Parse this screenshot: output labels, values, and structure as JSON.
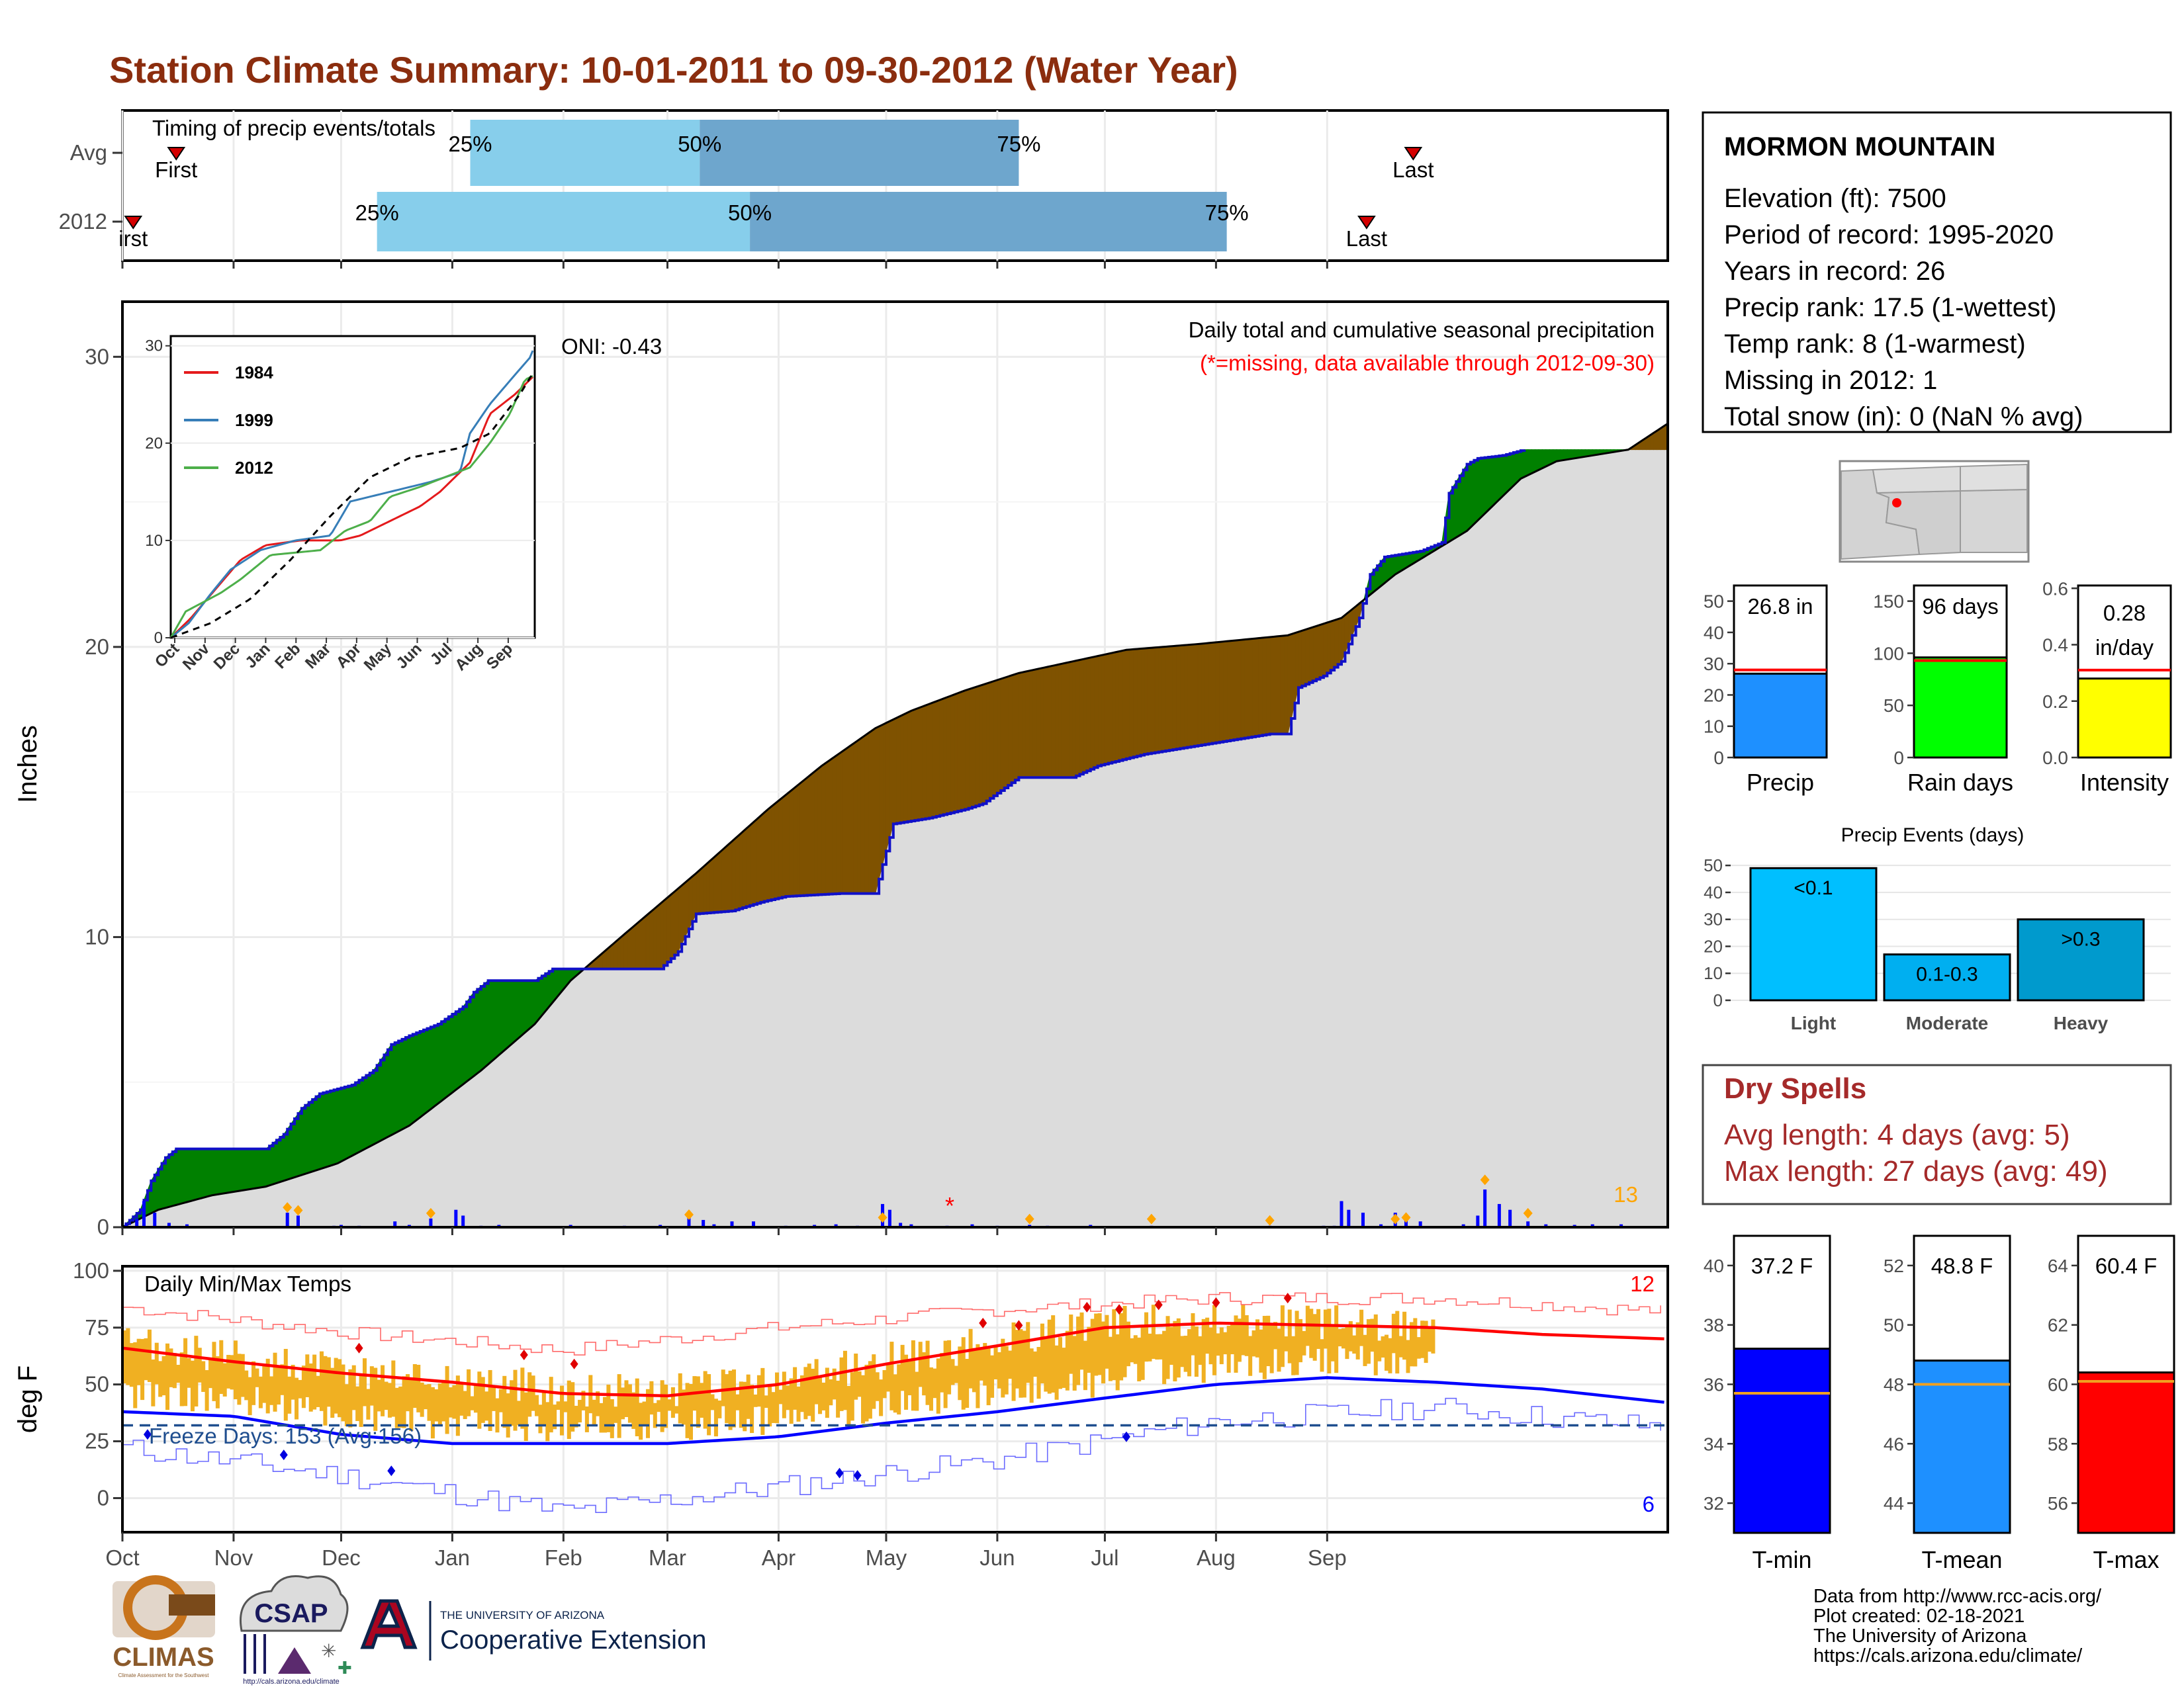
{
  "title": "Station Climate Summary: 10-01-2011 to 09-30-2012 (Water Year)",
  "colors": {
    "title": "#8b2d0e",
    "surplus": "#008000",
    "deficit": "#7f5200",
    "cum_fill": "#dcdcdc",
    "precip_bar": "#0000ff",
    "temp_range": "#f0b022",
    "tmax_line": "#ff0000",
    "tmin_line": "#0000ff",
    "dry_spells": "#a52a2a",
    "light_blue": "#87ceeb",
    "steel_blue": "#6ea6cd"
  },
  "timing": {
    "title": "Timing of precip events/totals",
    "rows": [
      {
        "label": "Avg",
        "first_label": "First",
        "last_label": "Last",
        "first_day": 15,
        "last_day": 360,
        "p25": 97,
        "p50": 161,
        "p75": 250,
        "p25_label": "25%",
        "p50_label": "50%",
        "p75_label": "75%"
      },
      {
        "label": "2012",
        "first_label": "irst",
        "last_label": "Last",
        "first_day": 3,
        "last_day": 347,
        "p25": 71,
        "p50": 175,
        "p75": 308,
        "p25_label": "25%",
        "p50_label": "50%",
        "p75_label": "75%"
      }
    ]
  },
  "precip_panel": {
    "ylabel": "Inches",
    "yticks": [
      "0",
      "10",
      "20",
      "30"
    ],
    "oni": "ONI: -0.43",
    "caption": "Daily total and cumulative seasonal precipitation",
    "missing_note": "(*=missing, data available through 2012-09-30)",
    "count_label": "13"
  },
  "inset": {
    "series": [
      {
        "name": "1984",
        "color": "#e41a1c"
      },
      {
        "name": "1999",
        "color": "#377eb8"
      },
      {
        "name": "2012",
        "color": "#4daf4a"
      }
    ],
    "yticks": [
      "0",
      "10",
      "20",
      "30"
    ],
    "xticks": [
      "Oct",
      "Nov",
      "Dec",
      "Jan",
      "Feb",
      "Mar",
      "Apr",
      "May",
      "Jun",
      "Jul",
      "Aug",
      "Sep"
    ]
  },
  "temp_panel": {
    "ylabel": "deg F",
    "yticks": [
      "0",
      "25",
      "50",
      "75",
      "100"
    ],
    "caption": "Daily Min/Max Temps",
    "freeze_label": "Freeze Days: 153 (Avg:156)",
    "hot_count": "12",
    "cold_count": "6",
    "months": [
      "Oct",
      "Nov",
      "Dec",
      "Jan",
      "Feb",
      "Mar",
      "Apr",
      "May",
      "Jun",
      "Jul",
      "Aug",
      "Sep"
    ]
  },
  "station": {
    "name": "MORMON MOUNTAIN",
    "lines": [
      "Elevation (ft): 7500",
      "Period of record: 1995-2020",
      "Years in record: 26",
      "Precip rank: 17.5 (1-wettest)",
      "Temp rank: 8 (1-warmest)",
      "Missing in 2012: 1",
      "Total snow (in): 0 (NaN % avg)"
    ]
  },
  "mini_bars": [
    {
      "value_label": "26.8 in",
      "value": 26.8,
      "avg": 28,
      "max": 55,
      "ticks": [
        "0",
        "10",
        "20",
        "30",
        "40",
        "50"
      ],
      "tick_vals": [
        0,
        10,
        20,
        30,
        40,
        50
      ],
      "xlabel": "Precip",
      "color": "#1e90ff"
    },
    {
      "value_label": "96 days",
      "value": 96,
      "avg": 93,
      "max": 165,
      "ticks": [
        "0",
        "50",
        "100",
        "150"
      ],
      "tick_vals": [
        0,
        50,
        100,
        150
      ],
      "xlabel": "Rain days",
      "color": "#00ff00"
    },
    {
      "value_label": "0.28",
      "value_label2": "in/day",
      "value": 0.28,
      "avg": 0.31,
      "max": 0.61,
      "ticks": [
        "0.0",
        "0.2",
        "0.4",
        "0.6"
      ],
      "tick_vals": [
        0,
        0.2,
        0.4,
        0.6
      ],
      "xlabel": "Intensity",
      "color": "#ffff00"
    }
  ],
  "events": {
    "title": "Precip Events (days)",
    "yticks": [
      "0",
      "10",
      "20",
      "30",
      "40",
      "50"
    ],
    "bars": [
      {
        "label": "<0.1",
        "category": "Light",
        "value": 49,
        "color": "#00bfff"
      },
      {
        "label": "0.1-0.3",
        "category": "Moderate",
        "value": 17,
        "color": "#00aff0"
      },
      {
        "label": ">0.3",
        "category": "Heavy",
        "value": 30,
        "color": "#009acd"
      }
    ]
  },
  "dry_spells": {
    "title": "Dry Spells",
    "avg_line": "Avg length: 4 days (avg: 5)",
    "max_line": "Max length: 27 days (avg: 49)"
  },
  "temp_bars": [
    {
      "value_label": "37.2 F",
      "value": 37.2,
      "avg": 35.7,
      "min": 31,
      "max": 41,
      "ticks": [
        "32",
        "34",
        "36",
        "38",
        "40"
      ],
      "tick_vals": [
        32,
        34,
        36,
        38,
        40
      ],
      "xlabel": "T-min",
      "color": "#0000ff"
    },
    {
      "value_label": "48.8 F",
      "value": 48.8,
      "avg": 48.0,
      "min": 43,
      "max": 53,
      "ticks": [
        "44",
        "46",
        "48",
        "50",
        "52"
      ],
      "tick_vals": [
        44,
        46,
        48,
        50,
        52
      ],
      "xlabel": "T-mean",
      "color": "#1e90ff"
    },
    {
      "value_label": "60.4 F",
      "value": 60.4,
      "avg": 60.1,
      "min": 55,
      "max": 65,
      "ticks": [
        "56",
        "58",
        "60",
        "62",
        "64"
      ],
      "tick_vals": [
        56,
        58,
        60,
        62,
        64
      ],
      "xlabel": "T-max",
      "color": "#ff0000"
    }
  ],
  "credits": [
    "Data from http://www.rcc-acis.org/",
    "Plot created: 02-18-2021",
    "The University of Arizona",
    "https://cals.arizona.edu/climate/"
  ],
  "logos": {
    "climas": "CLIMAS",
    "climas_sub": "Climate Assessment for the Southwest",
    "csap": "CSAP",
    "csap_url": "http://cals.arizona.edu/climate",
    "ua_small": "THE UNIVERSITY OF ARIZONA",
    "ua_big": "Cooperative Extension"
  },
  "chart_data": {
    "type": "area",
    "title": "Daily total and cumulative seasonal precipitation",
    "ylabel": "Inches",
    "ylim": [
      0,
      30
    ],
    "x_unit": "day of water year (Oct 1 = 0)",
    "cumulative_2012": [
      [
        0,
        0
      ],
      [
        5,
        0.6
      ],
      [
        8,
        1.6
      ],
      [
        12,
        2.4
      ],
      [
        15,
        2.7
      ],
      [
        40,
        2.7
      ],
      [
        45,
        3.2
      ],
      [
        50,
        4.1
      ],
      [
        55,
        4.6
      ],
      [
        64,
        4.9
      ],
      [
        70,
        5.4
      ],
      [
        75,
        6.3
      ],
      [
        80,
        6.6
      ],
      [
        88,
        7.0
      ],
      [
        95,
        7.6
      ],
      [
        98,
        8.1
      ],
      [
        102,
        8.5
      ],
      [
        115,
        8.5
      ],
      [
        120,
        8.9
      ],
      [
        150,
        8.9
      ],
      [
        155,
        9.5
      ],
      [
        160,
        10.8
      ],
      [
        170,
        10.9
      ],
      [
        178,
        11.2
      ],
      [
        185,
        11.4
      ],
      [
        200,
        11.5
      ],
      [
        210,
        11.5
      ],
      [
        212,
        12.5
      ],
      [
        215,
        13.9
      ],
      [
        225,
        14.1
      ],
      [
        235,
        14.4
      ],
      [
        240,
        14.6
      ],
      [
        250,
        15.5
      ],
      [
        265,
        15.5
      ],
      [
        272,
        15.9
      ],
      [
        285,
        16.3
      ],
      [
        300,
        16.6
      ],
      [
        310,
        16.8
      ],
      [
        320,
        17.0
      ],
      [
        325,
        17.0
      ],
      [
        328,
        18.6
      ],
      [
        335,
        19.0
      ],
      [
        340,
        19.5
      ],
      [
        345,
        21.0
      ],
      [
        348,
        22.5
      ],
      [
        352,
        23.1
      ],
      [
        362,
        23.3
      ],
      [
        368,
        23.6
      ],
      [
        370,
        25.3
      ],
      [
        375,
        26.3
      ],
      [
        378,
        26.5
      ],
      [
        385,
        26.6
      ],
      [
        391,
        26.8
      ]
    ],
    "average_cumulative": [
      [
        0,
        0
      ],
      [
        10,
        0.6
      ],
      [
        25,
        1.1
      ],
      [
        40,
        1.4
      ],
      [
        60,
        2.2
      ],
      [
        80,
        3.5
      ],
      [
        100,
        5.4
      ],
      [
        115,
        7.0
      ],
      [
        125,
        8.5
      ],
      [
        140,
        10.1
      ],
      [
        160,
        12.2
      ],
      [
        180,
        14.4
      ],
      [
        195,
        15.9
      ],
      [
        210,
        17.2
      ],
      [
        220,
        17.8
      ],
      [
        235,
        18.5
      ],
      [
        250,
        19.1
      ],
      [
        265,
        19.5
      ],
      [
        280,
        19.9
      ],
      [
        300,
        20.1
      ],
      [
        325,
        20.4
      ],
      [
        340,
        21.0
      ],
      [
        355,
        22.5
      ],
      [
        375,
        24.0
      ],
      [
        390,
        25.8
      ],
      [
        400,
        26.4
      ],
      [
        420,
        26.8
      ],
      [
        431,
        27.7
      ]
    ],
    "monthly_tick_days": [
      0,
      31,
      61,
      92,
      123,
      152,
      183,
      213,
      244,
      274,
      305,
      336
    ],
    "daily_precip_events": [
      [
        1,
        0.08
      ],
      [
        4,
        0.3
      ],
      [
        6,
        0.9
      ],
      [
        9,
        0.5
      ],
      [
        13,
        0.15
      ],
      [
        18,
        0.1
      ],
      [
        46,
        0.5
      ],
      [
        49,
        0.4
      ],
      [
        59,
        0.05
      ],
      [
        61,
        0.08
      ],
      [
        66,
        0.05
      ],
      [
        76,
        0.2
      ],
      [
        80,
        0.08
      ],
      [
        86,
        0.3
      ],
      [
        93,
        0.6
      ],
      [
        95,
        0.4
      ],
      [
        100,
        0.05
      ],
      [
        105,
        0.08
      ],
      [
        125,
        0.08
      ],
      [
        140,
        0.05
      ],
      [
        150,
        0.08
      ],
      [
        158,
        0.4
      ],
      [
        162,
        0.25
      ],
      [
        165,
        0.1
      ],
      [
        170,
        0.2
      ],
      [
        176,
        0.2
      ],
      [
        185,
        0.05
      ],
      [
        193,
        0.08
      ],
      [
        199,
        0.1
      ],
      [
        205,
        0.05
      ],
      [
        212,
        0.8
      ],
      [
        214,
        0.6
      ],
      [
        217,
        0.15
      ],
      [
        220,
        0.1
      ],
      [
        230,
        0.05
      ],
      [
        237,
        0.1
      ],
      [
        244,
        0.05
      ],
      [
        253,
        0.08
      ],
      [
        258,
        0.05
      ],
      [
        270,
        0.08
      ],
      [
        287,
        0.05
      ],
      [
        320,
        0.05
      ],
      [
        335,
        0.05
      ],
      [
        338,
        0.05
      ],
      [
        340,
        0.9
      ],
      [
        342,
        0.6
      ],
      [
        346,
        0.5
      ],
      [
        351,
        0.1
      ],
      [
        355,
        0.5
      ],
      [
        358,
        0.3
      ],
      [
        362,
        0.2
      ],
      [
        374,
        0.1
      ],
      [
        378,
        0.4
      ],
      [
        380,
        1.3
      ],
      [
        384,
        0.8
      ],
      [
        387,
        0.6
      ],
      [
        392,
        0.2
      ],
      [
        397,
        0.1
      ],
      [
        405,
        0.08
      ],
      [
        410,
        0.1
      ],
      [
        418,
        0.1
      ]
    ],
    "missing_day": 232,
    "temperature": {
      "ylim": [
        -15,
        102
      ],
      "tmax_smoothed": [
        [
          0,
          66
        ],
        [
          31,
          60
        ],
        [
          61,
          55
        ],
        [
          92,
          51
        ],
        [
          123,
          46
        ],
        [
          152,
          45
        ],
        [
          183,
          50
        ],
        [
          213,
          59
        ],
        [
          244,
          67
        ],
        [
          274,
          75
        ],
        [
          305,
          77
        ],
        [
          336,
          76
        ],
        [
          366,
          75
        ],
        [
          396,
          72
        ],
        [
          431,
          70
        ]
      ],
      "tmin_smoothed": [
        [
          0,
          38
        ],
        [
          31,
          36
        ],
        [
          61,
          28
        ],
        [
          92,
          24
        ],
        [
          123,
          24
        ],
        [
          152,
          24
        ],
        [
          183,
          27
        ],
        [
          213,
          33
        ],
        [
          244,
          38
        ],
        [
          274,
          44
        ],
        [
          305,
          50
        ],
        [
          336,
          53
        ],
        [
          366,
          51
        ],
        [
          396,
          48
        ],
        [
          431,
          42
        ]
      ],
      "freeze_threshold": 32,
      "record_high_approx": [
        [
          0,
          84
        ],
        [
          61,
          73
        ],
        [
          123,
          65
        ],
        [
          183,
          75
        ],
        [
          244,
          83
        ],
        [
          305,
          88
        ],
        [
          366,
          88
        ],
        [
          431,
          82
        ]
      ],
      "record_low_approx": [
        [
          0,
          22
        ],
        [
          61,
          10
        ],
        [
          123,
          -6
        ],
        [
          183,
          5
        ],
        [
          244,
          17
        ],
        [
          305,
          34
        ],
        [
          366,
          40
        ],
        [
          431,
          31
        ]
      ]
    }
  }
}
